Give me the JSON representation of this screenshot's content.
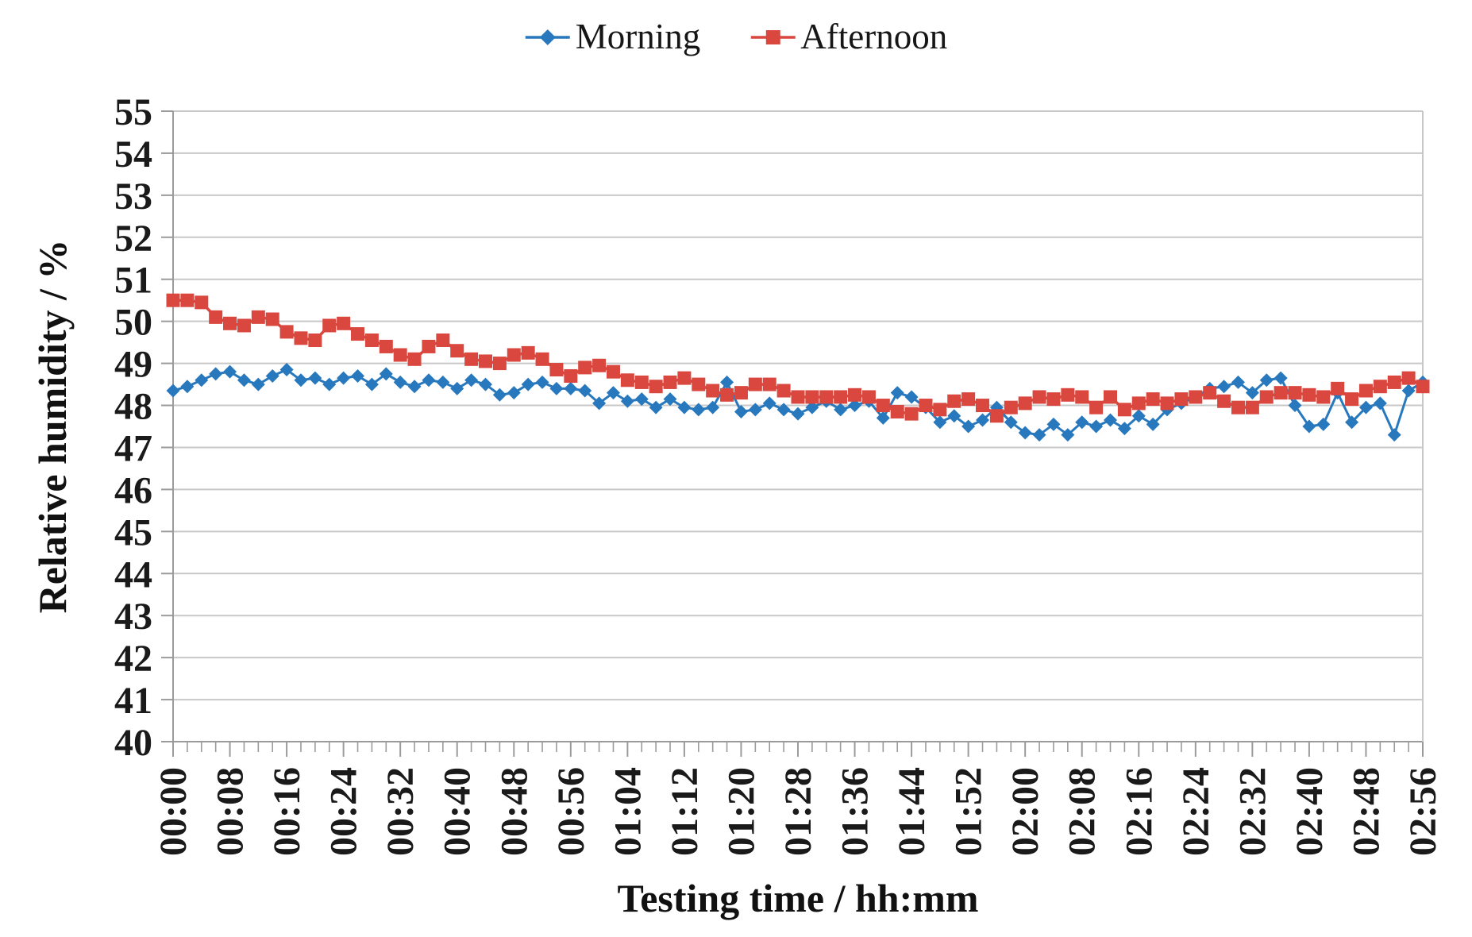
{
  "figure": {
    "background": "#ffffff",
    "text_color": "#1a1a1a"
  },
  "chart_data": {
    "type": "line",
    "title": "",
    "xlabel": "Testing time / hh:mm",
    "ylabel": "Relative humidity / %",
    "ylim": [
      40,
      55
    ],
    "ytick_step": 1,
    "grid": "horizontal",
    "legend_position": "top-center",
    "colors": {
      "grid": "#c8c8c8",
      "axis": "#9b9b9b"
    },
    "y_ticks": [
      "55",
      "54",
      "53",
      "52",
      "51",
      "50",
      "49",
      "48",
      "47",
      "46",
      "45",
      "44",
      "43",
      "42",
      "41",
      "40"
    ],
    "x_tick_labels": [
      "00:00",
      "00:08",
      "00:16",
      "00:24",
      "00:32",
      "00:40",
      "00:48",
      "00:56",
      "01:04",
      "01:12",
      "01:20",
      "01:28",
      "01:36",
      "01:44",
      "01:52",
      "02:00",
      "02:08",
      "02:16",
      "02:24",
      "02:32",
      "02:40",
      "02:48",
      "02:56"
    ],
    "x": [
      "00:00",
      "00:02",
      "00:04",
      "00:06",
      "00:08",
      "00:10",
      "00:12",
      "00:14",
      "00:16",
      "00:18",
      "00:20",
      "00:22",
      "00:24",
      "00:26",
      "00:28",
      "00:30",
      "00:32",
      "00:34",
      "00:36",
      "00:38",
      "00:40",
      "00:42",
      "00:44",
      "00:46",
      "00:48",
      "00:50",
      "00:52",
      "00:54",
      "00:56",
      "00:58",
      "01:00",
      "01:02",
      "01:04",
      "01:06",
      "01:08",
      "01:10",
      "01:12",
      "01:14",
      "01:16",
      "01:18",
      "01:20",
      "01:22",
      "01:24",
      "01:26",
      "01:28",
      "01:30",
      "01:32",
      "01:34",
      "01:36",
      "01:38",
      "01:40",
      "01:42",
      "01:44",
      "01:46",
      "01:48",
      "01:50",
      "01:52",
      "01:54",
      "01:56",
      "01:58",
      "02:00",
      "02:02",
      "02:04",
      "02:06",
      "02:08",
      "02:10",
      "02:12",
      "02:14",
      "02:16",
      "02:18",
      "02:20",
      "02:22",
      "02:24",
      "02:26",
      "02:28",
      "02:30",
      "02:32",
      "02:34",
      "02:36",
      "02:38",
      "02:40",
      "02:42",
      "02:44",
      "02:46",
      "02:48",
      "02:50",
      "02:52",
      "02:54",
      "02:56"
    ],
    "series": [
      {
        "name": "Morning",
        "color": "#2878BE",
        "marker": "diamond",
        "values": [
          48.35,
          48.45,
          48.6,
          48.75,
          48.8,
          48.6,
          48.5,
          48.7,
          48.85,
          48.6,
          48.65,
          48.5,
          48.65,
          48.7,
          48.5,
          48.75,
          48.55,
          48.45,
          48.6,
          48.55,
          48.4,
          48.6,
          48.5,
          48.25,
          48.3,
          48.5,
          48.55,
          48.4,
          48.4,
          48.35,
          48.05,
          48.3,
          48.1,
          48.15,
          47.95,
          48.15,
          47.95,
          47.9,
          47.95,
          48.55,
          47.85,
          47.9,
          48.05,
          47.9,
          47.8,
          47.95,
          48.1,
          47.9,
          48.0,
          48.1,
          47.7,
          48.3,
          48.2,
          47.95,
          47.6,
          47.75,
          47.5,
          47.65,
          47.95,
          47.6,
          47.35,
          47.3,
          47.55,
          47.3,
          47.6,
          47.5,
          47.65,
          47.45,
          47.75,
          47.55,
          47.9,
          48.05,
          48.2,
          48.4,
          48.45,
          48.55,
          48.3,
          48.6,
          48.65,
          48.0,
          47.5,
          47.55,
          48.3,
          47.6,
          47.95,
          48.05,
          47.3,
          48.35,
          48.55
        ]
      },
      {
        "name": "Afternoon",
        "color": "#D9473E",
        "marker": "square",
        "values": [
          50.5,
          50.5,
          50.45,
          50.1,
          49.95,
          49.9,
          50.1,
          50.05,
          49.75,
          49.6,
          49.55,
          49.9,
          49.95,
          49.7,
          49.55,
          49.4,
          49.2,
          49.1,
          49.4,
          49.55,
          49.3,
          49.1,
          49.05,
          49.0,
          49.2,
          49.25,
          49.1,
          48.85,
          48.7,
          48.9,
          48.95,
          48.8,
          48.6,
          48.55,
          48.45,
          48.55,
          48.65,
          48.5,
          48.35,
          48.25,
          48.3,
          48.5,
          48.5,
          48.35,
          48.2,
          48.2,
          48.2,
          48.2,
          48.25,
          48.2,
          48.0,
          47.85,
          47.8,
          48.0,
          47.9,
          48.1,
          48.15,
          48.0,
          47.75,
          47.95,
          48.05,
          48.2,
          48.15,
          48.25,
          48.2,
          47.95,
          48.2,
          47.9,
          48.05,
          48.15,
          48.05,
          48.15,
          48.2,
          48.3,
          48.1,
          47.95,
          47.95,
          48.2,
          48.3,
          48.3,
          48.25,
          48.2,
          48.4,
          48.15,
          48.35,
          48.45,
          48.55,
          48.65,
          48.45
        ]
      }
    ]
  }
}
